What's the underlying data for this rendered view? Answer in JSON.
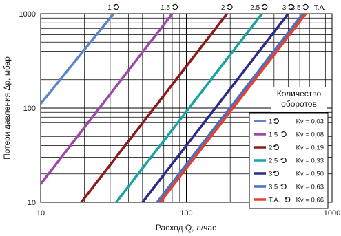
{
  "chart_data": {
    "type": "line",
    "xscale": "log",
    "yscale": "log",
    "xlim": [
      10,
      1000
    ],
    "ylim": [
      10,
      1000
    ],
    "xlabel": "Расход Q, л/час",
    "ylabel": "Потери давления  Δp, мбар",
    "x_ticks": [
      "10",
      "100",
      "1000"
    ],
    "y_ticks": [
      "10",
      "100",
      "1000"
    ],
    "grid": true,
    "legend": {
      "title_line1": "Количество",
      "title_line2": "оборотов",
      "placement": "bottom-right"
    },
    "series": [
      {
        "name": "1",
        "kv_label": "Kv = 0,03",
        "kv": 0.03,
        "color": "#5b86c9",
        "points": [
          [
            10,
            111
          ],
          [
            31.62,
            1000
          ]
        ]
      },
      {
        "name": "1,5",
        "kv_label": "Kv = 0,08",
        "kv": 0.08,
        "color": "#9b4aa8",
        "points": [
          [
            10,
            15.6
          ],
          [
            80,
            1000
          ]
        ]
      },
      {
        "name": "2",
        "kv_label": "Kv = 0,19",
        "kv": 0.19,
        "color": "#8b1a1a",
        "points": [
          [
            19,
            10
          ],
          [
            190,
            1000
          ]
        ]
      },
      {
        "name": "2,5",
        "kv_label": "Kv = 0,33",
        "kv": 0.33,
        "color": "#1aa3a3",
        "points": [
          [
            33,
            10
          ],
          [
            330,
            1000
          ]
        ]
      },
      {
        "name": "3",
        "kv_label": "Kv = 0,50",
        "kv": 0.5,
        "color": "#2b2b8c",
        "points": [
          [
            50,
            10
          ],
          [
            500,
            1000
          ]
        ]
      },
      {
        "name": "3,5",
        "kv_label": "Kv = 0,63",
        "kv": 0.63,
        "color": "#4a6fc4",
        "points": [
          [
            63,
            10
          ],
          [
            630,
            1000
          ]
        ]
      },
      {
        "name": "Т.А.",
        "kv_label": "Kv = 0,66",
        "kv": 0.66,
        "color": "#e8402a",
        "points": [
          [
            66,
            10
          ],
          [
            660,
            1000
          ]
        ]
      }
    ]
  }
}
